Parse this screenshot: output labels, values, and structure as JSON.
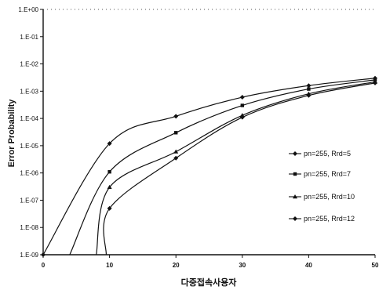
{
  "chart_data": {
    "type": "line",
    "title": "",
    "xlabel": "다중접속사용자",
    "ylabel": "Error Probability",
    "xlim": [
      0,
      50
    ],
    "ylim_exp": [
      -9,
      0
    ],
    "yscale": "log",
    "x_ticks": [
      "0",
      "10",
      "20",
      "30",
      "40",
      "50"
    ],
    "y_ticks": [
      "1.E-09",
      "1.E-08",
      "1.E-07",
      "1.E-06",
      "1.E-05",
      "1.E-04",
      "1.E-03",
      "1.E-02",
      "1.E-01",
      "1.E+00"
    ],
    "legend_position": "right",
    "series": [
      {
        "name": "pn=255, Rrd=5",
        "marker": "diamond",
        "points": [
          [
            0,
            1e-09
          ],
          [
            10,
            1.2e-05
          ],
          [
            20,
            0.00012
          ],
          [
            30,
            0.0006
          ],
          [
            40,
            0.0016
          ],
          [
            50,
            0.003
          ]
        ]
      },
      {
        "name": "pn=255, Rrd=7",
        "marker": "square",
        "points": [
          [
            4,
            1e-09
          ],
          [
            10,
            1.1e-06
          ],
          [
            20,
            3e-05
          ],
          [
            30,
            0.0003
          ],
          [
            40,
            0.0012
          ],
          [
            50,
            0.0026
          ]
        ]
      },
      {
        "name": "pn=255, Rrd=10",
        "marker": "triangle",
        "points": [
          [
            8,
            1e-09
          ],
          [
            10,
            3e-07
          ],
          [
            20,
            6e-06
          ],
          [
            30,
            0.00013
          ],
          [
            40,
            0.0008
          ],
          [
            50,
            0.0022
          ]
        ]
      },
      {
        "name": "pn=255, Rrd=12",
        "marker": "diamond",
        "points": [
          [
            9.5,
            1e-09
          ],
          [
            10,
            5e-08
          ],
          [
            20,
            3.5e-06
          ],
          [
            30,
            0.00011
          ],
          [
            40,
            0.0007
          ],
          [
            50,
            0.002
          ]
        ]
      }
    ]
  }
}
